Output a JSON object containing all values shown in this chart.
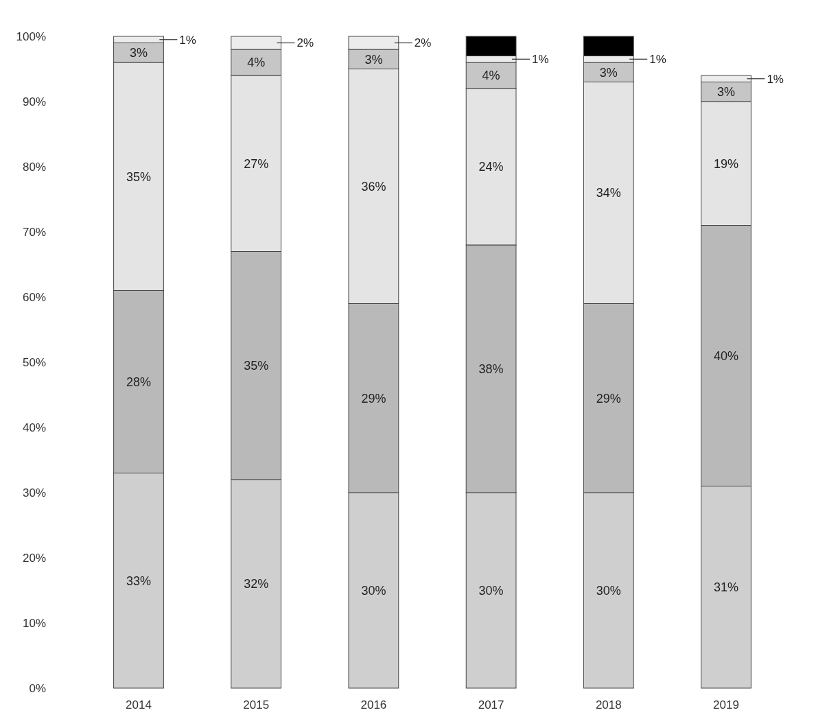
{
  "chart_data": {
    "type": "bar",
    "stacked": true,
    "categories": [
      "2014",
      "2015",
      "2016",
      "2017",
      "2018",
      "2019"
    ],
    "ylim": [
      0,
      100
    ],
    "yticks": [
      {
        "value": 0,
        "label": "0%"
      },
      {
        "value": 10,
        "label": "10%"
      },
      {
        "value": 20,
        "label": "20%"
      },
      {
        "value": 30,
        "label": "30%"
      },
      {
        "value": 40,
        "label": "40%"
      },
      {
        "value": 50,
        "label": "50%"
      },
      {
        "value": 60,
        "label": "60%"
      },
      {
        "value": 70,
        "label": "70%"
      },
      {
        "value": 80,
        "label": "80%"
      },
      {
        "value": 90,
        "label": "90%"
      },
      {
        "value": 100,
        "label": "100%"
      }
    ],
    "series": [
      {
        "color": "#cfcfcf",
        "values": [
          33,
          32,
          30,
          30,
          30,
          31
        ],
        "value_labels": [
          "33%",
          "32%",
          "30%",
          "30%",
          "30%",
          "31%"
        ]
      },
      {
        "color": "#b9b9b9",
        "values": [
          28,
          35,
          29,
          38,
          29,
          40
        ],
        "value_labels": [
          "28%",
          "35%",
          "29%",
          "38%",
          "29%",
          "40%"
        ]
      },
      {
        "color": "#e4e4e4",
        "values": [
          35,
          27,
          36,
          24,
          34,
          19
        ],
        "value_labels": [
          "35%",
          "27%",
          "36%",
          "24%",
          "34%",
          "19%"
        ]
      },
      {
        "color": "#c6c6c6",
        "values": [
          3,
          4,
          3,
          4,
          3,
          3
        ],
        "value_labels": [
          "3%",
          "4%",
          "3%",
          "4%",
          "3%",
          "3%"
        ]
      },
      {
        "color": "#ececec",
        "values": [
          1,
          2,
          2,
          1,
          1,
          1
        ],
        "value_labels": [
          "1%",
          "2%",
          "2%",
          "1%",
          "1%",
          "1%"
        ]
      },
      {
        "color": "#000000",
        "values": [
          null,
          null,
          null,
          3,
          3,
          null
        ],
        "value_labels": [
          null,
          null,
          null,
          null,
          null,
          null
        ]
      }
    ]
  }
}
